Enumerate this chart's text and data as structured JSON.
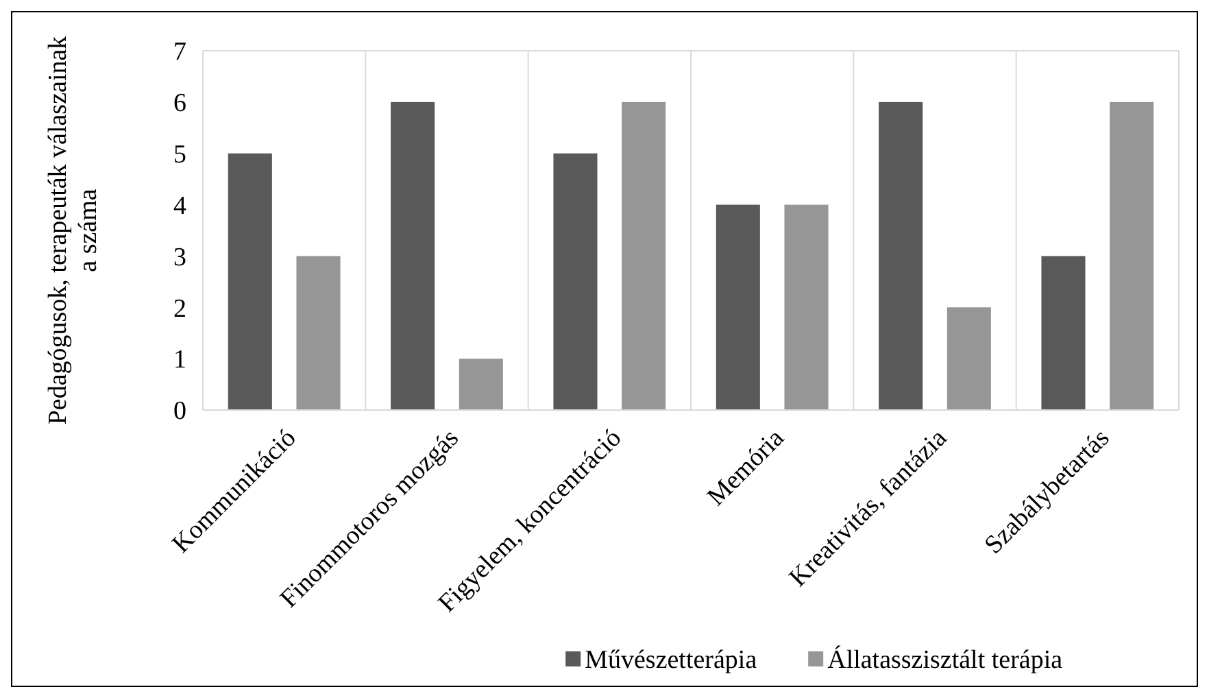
{
  "chart_data": {
    "type": "bar",
    "ylabel": "Pedagógusok, terapeuták válaszainak a száma",
    "categories": [
      "Kommunikáció",
      "Finommotoros mozgás",
      "Figyelem, koncentráció",
      "Memória",
      "Kreativitás, fantázia",
      "Szabálybetartás"
    ],
    "series": [
      {
        "name": "Művészetterápia",
        "color": "#595959",
        "values": [
          5,
          6,
          5,
          4,
          6,
          3
        ]
      },
      {
        "name": "Állatasszisztált terápia",
        "color": "#969696",
        "values": [
          3,
          1,
          6,
          4,
          2,
          6
        ]
      }
    ],
    "ylim": [
      0,
      7
    ],
    "yticks": [
      0,
      1,
      2,
      3,
      4,
      5,
      6,
      7
    ],
    "grid": "x",
    "legend": "bottom right"
  }
}
